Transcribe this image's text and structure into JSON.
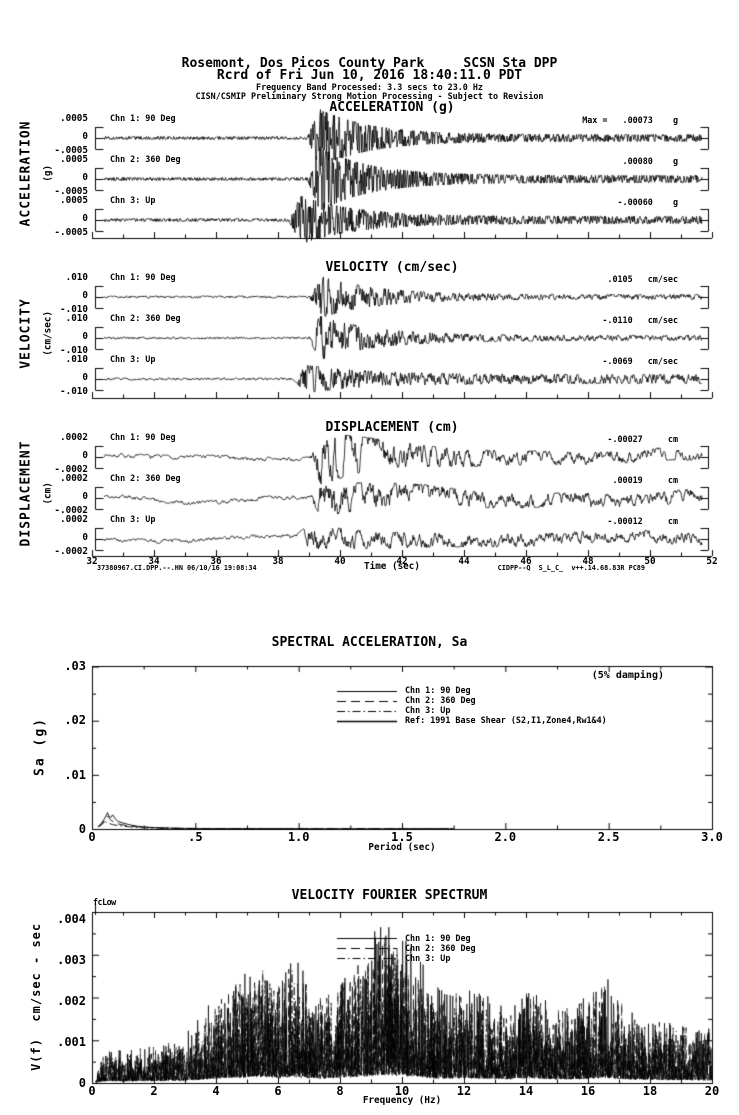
{
  "page": {
    "background": "#ffffff",
    "ink": "#000000"
  },
  "header": {
    "line1": "Rosemont, Dos Picos County Park     SCSN Sta DPP",
    "line2": "Rcrd of Fri Jun 10, 2016 18:40:11.0 PDT",
    "line3": "Frequency Band Processed: 3.3 secs to 23.0 Hz",
    "line4": "CISN/CSMIP Preliminary Strong Motion Processing - Subject to Revision"
  },
  "footer": {
    "left": "37380967.CI.DPP.--.HN 06/10/16 19:08:34",
    "right": "CIDPP--Q  S_L_C_  v++.14.68.83R PC89"
  },
  "chart_data": [
    {
      "type": "line",
      "name": "strong-motion-time-series",
      "x": {
        "label": "Time (sec)",
        "min": 32,
        "max": 52,
        "ticks": [
          "32",
          "34",
          "36",
          "38",
          "40",
          "42",
          "44",
          "46",
          "48",
          "50",
          "52"
        ]
      },
      "sections": [
        {
          "title": "ACCELERATION (g)",
          "side_label": "ACCELERATION",
          "side_unit": "(g)",
          "unit": "g",
          "ylim": [
            -0.0005,
            0.0005
          ],
          "scale_ticks": [
            ".0005",
            "0",
            "-.0005"
          ],
          "channels": [
            {
              "label": "Chn 1: 90 Deg",
              "peak_value": 0.00073,
              "unit": "g",
              "peak_annotation": "Max =   .00073    g",
              "wave": {
                "seed": 1,
                "a": 0.85,
                "gain": 1.6,
                "onset": 38.95,
                "rise": 0.4,
                "peak": 1.46,
                "coda": 0.17,
                "tau": 1.6,
                "floor": 0.07
              }
            },
            {
              "label": "Chn 2: 360 Deg",
              "peak_value": 0.0008,
              "unit": "g",
              "peak_annotation": ".00080    g",
              "wave": {
                "seed": 2,
                "a": 0.85,
                "gain": 1.6,
                "onset": 38.95,
                "rise": 0.4,
                "peak": 1.6,
                "coda": 0.18,
                "tau": 1.6,
                "floor": 0.07
              }
            },
            {
              "label": "Chn 3: Up",
              "peak_value": -0.0006,
              "unit": "g",
              "peak_annotation": "-.00060    g",
              "wave": {
                "seed": 3,
                "a": 0.85,
                "gain": 1.6,
                "onset": 38.35,
                "rise": 0.4,
                "peak": 1.2,
                "coda": 0.18,
                "tau": 1.8,
                "floor": 0.07
              }
            }
          ]
        },
        {
          "title": "VELOCITY (cm/sec)",
          "side_label": "VELOCITY",
          "side_unit": "(cm/sec)",
          "unit": "cm/sec",
          "ylim": [
            -0.01,
            0.01
          ],
          "scale_ticks": [
            ".010",
            "0",
            "-.010"
          ],
          "channels": [
            {
              "label": "Chn 1: 90 Deg",
              "peak_value": 0.0105,
              "unit": "cm/sec",
              "peak_annotation": ".0105   cm/sec",
              "wave": {
                "seed": 4,
                "a": 0.42,
                "gain": 2.4,
                "onset": 39.0,
                "rise": 0.35,
                "peak": 1.05,
                "coda": 0.12,
                "tau": 1.8,
                "floor": 0.05
              }
            },
            {
              "label": "Chn 2: 360 Deg",
              "peak_value": -0.011,
              "unit": "cm/sec",
              "peak_annotation": "-.0110   cm/sec",
              "wave": {
                "seed": 5,
                "a": 0.42,
                "gain": 2.4,
                "onset": 39.0,
                "rise": 0.35,
                "peak": 1.1,
                "coda": 0.13,
                "tau": 1.8,
                "floor": 0.05
              }
            },
            {
              "label": "Chn 3: Up",
              "peak_value": -0.0069,
              "unit": "cm/sec",
              "peak_annotation": "-.0069   cm/sec",
              "wave": {
                "seed": 6,
                "a": 0.42,
                "gain": 2.4,
                "onset": 38.5,
                "rise": 0.4,
                "peak": 0.69,
                "coda": 0.22,
                "tau": 2.2,
                "floor": 0.05
              }
            }
          ]
        },
        {
          "title": "DISPLACEMENT (cm)",
          "side_label": "DISPLACEMENT",
          "side_unit": "(cm)",
          "unit": "cm",
          "ylim": [
            -0.0002,
            0.0002
          ],
          "scale_ticks": [
            ".0002",
            "0",
            "-.0002"
          ],
          "channels": [
            {
              "label": "Chn 1: 90 Deg",
              "peak_value": -0.00027,
              "unit": "cm",
              "peak_annotation": "-.00027     cm",
              "wave": {
                "seed": 7,
                "a": 0.15,
                "gain": 4.2,
                "onset": 39.05,
                "rise": 0.35,
                "peak": 1.35,
                "coda": 0.3,
                "tau": 2.2,
                "floor": 0.1,
                "w1": 0.1,
                "f1": 0.7,
                "ph1": 1.0,
                "w2": 0.06,
                "f2": 1.3,
                "ph2": 2.2
              }
            },
            {
              "label": "Chn 2: 360 Deg",
              "peak_value": 0.00019,
              "unit": "cm",
              "peak_annotation": ".00019     cm",
              "wave": {
                "seed": 8,
                "a": 0.15,
                "gain": 4.2,
                "onset": 39.05,
                "rise": 0.35,
                "peak": 0.95,
                "coda": 0.32,
                "tau": 2.2,
                "floor": 0.1,
                "w1": 0.16,
                "f1": 0.55,
                "ph1": 2.6,
                "w2": 0.08,
                "f2": 1.3,
                "ph2": 0.5
              }
            },
            {
              "label": "Chn 3: Up",
              "peak_value": -0.00012,
              "unit": "cm",
              "peak_annotation": "-.00012     cm",
              "wave": {
                "seed": 9,
                "a": 0.15,
                "gain": 4.2,
                "onset": 38.6,
                "rise": 0.4,
                "peak": 0.62,
                "coda": 0.3,
                "tau": 2.4,
                "floor": 0.1,
                "w1": 0.1,
                "f1": 0.6,
                "ph1": 4.0,
                "w2": 0.05,
                "f2": 1.1,
                "ph2": 1.4
              }
            }
          ]
        }
      ]
    },
    {
      "type": "line",
      "name": "response-spectrum",
      "title": "SPECTRAL ACCELERATION, Sa",
      "note": "(5% damping)",
      "xlabel": "Period (sec)",
      "ylabel": "Sa (g)",
      "xlim": [
        0,
        3
      ],
      "ylim": [
        0,
        0.03
      ],
      "x_ticks": [
        "0",
        ".5",
        "1.0",
        "1.5",
        "2.0",
        "2.5",
        "3.0"
      ],
      "y_ticks": [
        "0",
        ".01",
        ".02",
        ".03"
      ],
      "legend": [
        {
          "label": "Chn 1: 90 Deg",
          "dash": "solid"
        },
        {
          "label": "Chn 2: 360 Deg",
          "dash": "longdash"
        },
        {
          "label": "Chn 3: Up",
          "dash": "dashdot"
        },
        {
          "label": "Ref: 1991 Base Shear (S2,I1,Zone4,Rw1&4)",
          "dash": "solid"
        }
      ],
      "series": [
        {
          "name": "Chn 1: 90 Deg",
          "dash": "solid",
          "points": [
            [
              0.03,
              0.0005
            ],
            [
              0.045,
              0.001
            ],
            [
              0.055,
              0.0016
            ],
            [
              0.065,
              0.0022
            ],
            [
              0.075,
              0.003
            ],
            [
              0.082,
              0.0024
            ],
            [
              0.09,
              0.0021
            ],
            [
              0.1,
              0.0026
            ],
            [
              0.11,
              0.002
            ],
            [
              0.125,
              0.0014
            ],
            [
              0.15,
              0.0011
            ],
            [
              0.18,
              0.0008
            ],
            [
              0.22,
              0.0005
            ],
            [
              0.28,
              0.0003
            ],
            [
              0.35,
              0.0002
            ],
            [
              0.45,
              0.00012
            ],
            [
              0.6,
              8e-05
            ],
            [
              0.9,
              5e-05
            ],
            [
              1.3,
              4e-05
            ],
            [
              1.75,
              3e-05
            ]
          ]
        },
        {
          "name": "Chn 2: 360 Deg",
          "dash": "longdash",
          "points": [
            [
              0.03,
              0.0004
            ],
            [
              0.05,
              0.0009
            ],
            [
              0.065,
              0.0015
            ],
            [
              0.075,
              0.0024
            ],
            [
              0.09,
              0.0017
            ],
            [
              0.105,
              0.0013
            ],
            [
              0.13,
              0.0009
            ],
            [
              0.17,
              0.0006
            ],
            [
              0.22,
              0.0004
            ],
            [
              0.3,
              0.00022
            ],
            [
              0.4,
              0.00013
            ],
            [
              0.55,
              8e-05
            ],
            [
              0.8,
              5e-05
            ],
            [
              1.2,
              4e-05
            ],
            [
              1.75,
              3e-05
            ]
          ]
        },
        {
          "name": "Chn 3: Up",
          "dash": "dashdot",
          "points": [
            [
              0.03,
              0.0004
            ],
            [
              0.045,
              0.0008
            ],
            [
              0.06,
              0.0016
            ],
            [
              0.07,
              0.0012
            ],
            [
              0.085,
              0.001
            ],
            [
              0.1,
              0.0008
            ],
            [
              0.13,
              0.0006
            ],
            [
              0.18,
              0.0004
            ],
            [
              0.25,
              0.00022
            ],
            [
              0.35,
              0.00012
            ],
            [
              0.5,
              7e-05
            ],
            [
              0.8,
              4e-05
            ],
            [
              1.3,
              3e-05
            ],
            [
              1.75,
              2e-05
            ]
          ]
        },
        {
          "name": "Ref: 1991 Base Shear (S2,I1,Zone4,Rw1&4)",
          "dash": "solid",
          "points": [],
          "note": "not visible within plotted range"
        }
      ]
    },
    {
      "type": "line",
      "name": "velocity-fourier-spectrum",
      "title": "VELOCITY FOURIER SPECTRUM",
      "marker": "fcLow",
      "xlabel": "Frequency (Hz)",
      "ylabel": "V(f)  cm/sec - sec",
      "xlim": [
        0,
        20
      ],
      "ylim": [
        0,
        0.004
      ],
      "x_ticks": [
        "0",
        "2",
        "4",
        "6",
        "8",
        "10",
        "12",
        "14",
        "16",
        "18",
        "20"
      ],
      "y_ticks": [
        "0",
        ".001",
        ".002",
        ".003",
        ".004"
      ],
      "legend": [
        {
          "label": "Chn 1: 90 Deg",
          "dash": "solid"
        },
        {
          "label": "Chn 2: 360 Deg",
          "dash": "longdash"
        },
        {
          "label": "Chn 3: Up",
          "dash": "dashdot"
        }
      ],
      "envelope": [
        [
          0,
          0.00018
        ],
        [
          0.3,
          0.0003
        ],
        [
          0.6,
          0.00035
        ],
        [
          1,
          0.0003
        ],
        [
          1.5,
          0.00032
        ],
        [
          2,
          0.00035
        ],
        [
          2.5,
          0.0004
        ],
        [
          3,
          0.00045
        ],
        [
          3.5,
          0.0006
        ],
        [
          4,
          0.0008
        ],
        [
          4.5,
          0.0009
        ],
        [
          5,
          0.001
        ],
        [
          5.5,
          0.0012
        ],
        [
          6,
          0.0009
        ],
        [
          6.5,
          0.0012
        ],
        [
          7,
          0.0009
        ],
        [
          7.5,
          0.0008
        ],
        [
          8,
          0.001
        ],
        [
          8.5,
          0.0011
        ],
        [
          9,
          0.0013
        ],
        [
          9.5,
          0.0015
        ],
        [
          10,
          0.0013
        ],
        [
          10.5,
          0.0012
        ],
        [
          11,
          0.0009
        ],
        [
          11.5,
          0.0008
        ],
        [
          12,
          0.0009
        ],
        [
          12.5,
          0.0008
        ],
        [
          13,
          0.0008
        ],
        [
          13.5,
          0.0007
        ],
        [
          14,
          0.0009
        ],
        [
          14.5,
          0.0008
        ],
        [
          15,
          0.0007
        ],
        [
          15.5,
          0.0007
        ],
        [
          16,
          0.0008
        ],
        [
          16.5,
          0.001
        ],
        [
          17,
          0.0008
        ],
        [
          17.5,
          0.0006
        ],
        [
          18,
          0.0006
        ],
        [
          18.5,
          0.00055
        ],
        [
          19,
          0.00055
        ],
        [
          19.5,
          0.0005
        ],
        [
          20,
          0.0005
        ]
      ],
      "series": [
        {
          "name": "Chn 1: 90 Deg",
          "dash": "solid",
          "seed": 21,
          "scale": 1.0
        },
        {
          "name": "Chn 2: 360 Deg",
          "dash": "longdash",
          "seed": 22,
          "scale": 0.95
        },
        {
          "name": "Chn 3: Up",
          "dash": "dashdot",
          "seed": 23,
          "scale": 0.85
        }
      ]
    }
  ]
}
